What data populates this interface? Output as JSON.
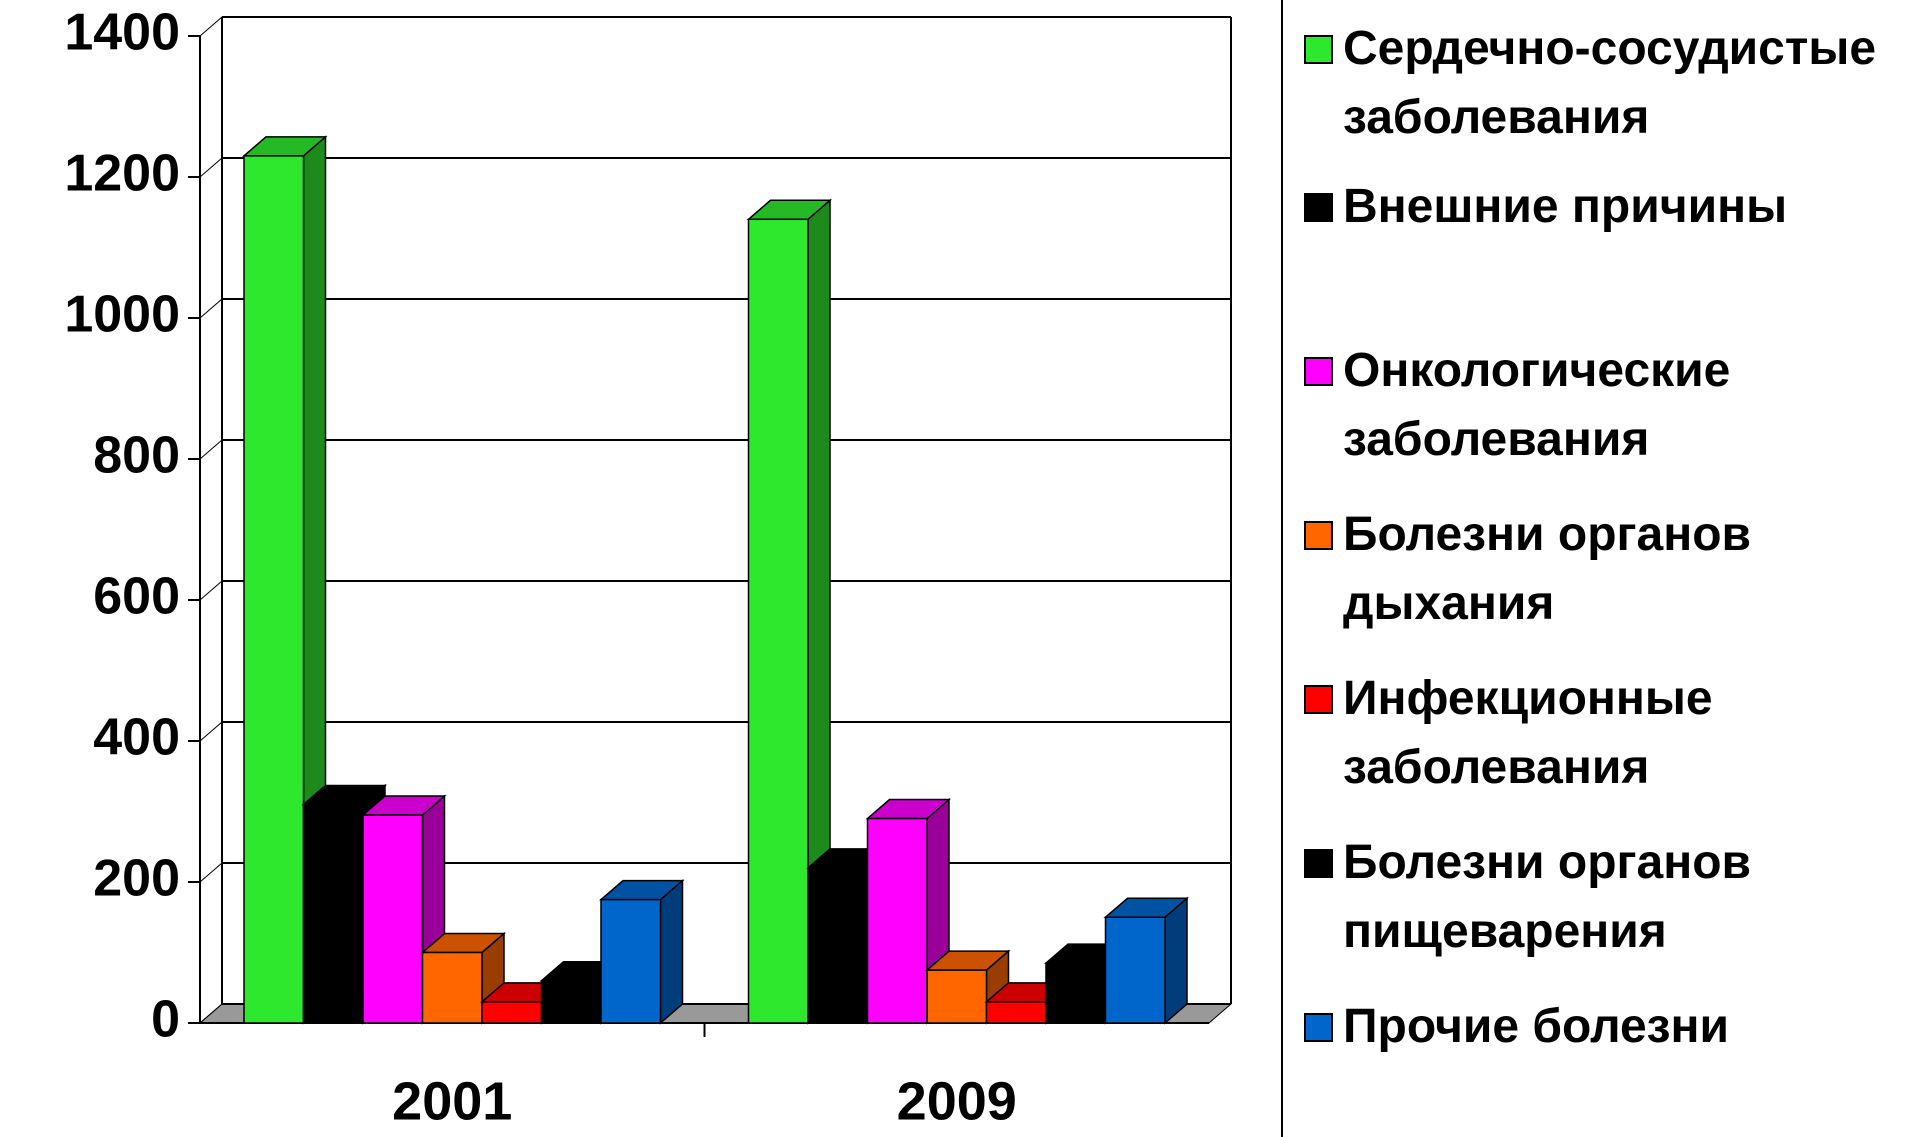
{
  "chart_data": {
    "type": "bar3d",
    "categories": [
      "2001",
      "2009"
    ],
    "series": [
      {
        "name": "Сердечно-сосудистые заболевания",
        "color": "#2ee82e",
        "values": [
          1230,
          1140
        ]
      },
      {
        "name": "Внешние причины",
        "color": "#000000",
        "values": [
          310,
          220
        ]
      },
      {
        "name": "Онкологические заболевания",
        "color": "#ff00ff",
        "values": [
          295,
          290
        ]
      },
      {
        "name": "Болезни органов дыхания",
        "color": "#ff6600",
        "values": [
          100,
          75
        ]
      },
      {
        "name": "Инфекционные заболевания",
        "color": "#ff0000",
        "values": [
          30,
          30
        ]
      },
      {
        "name": "Болезни органов пищеварения",
        "color": "#000000",
        "values": [
          60,
          85
        ]
      },
      {
        "name": "Прочие болезни",
        "color": "#0066cc",
        "values": [
          175,
          150
        ]
      }
    ],
    "ylim": [
      0,
      1400
    ],
    "yticks": [
      0,
      200,
      400,
      600,
      800,
      1000,
      1200,
      1400
    ],
    "grid": true
  }
}
